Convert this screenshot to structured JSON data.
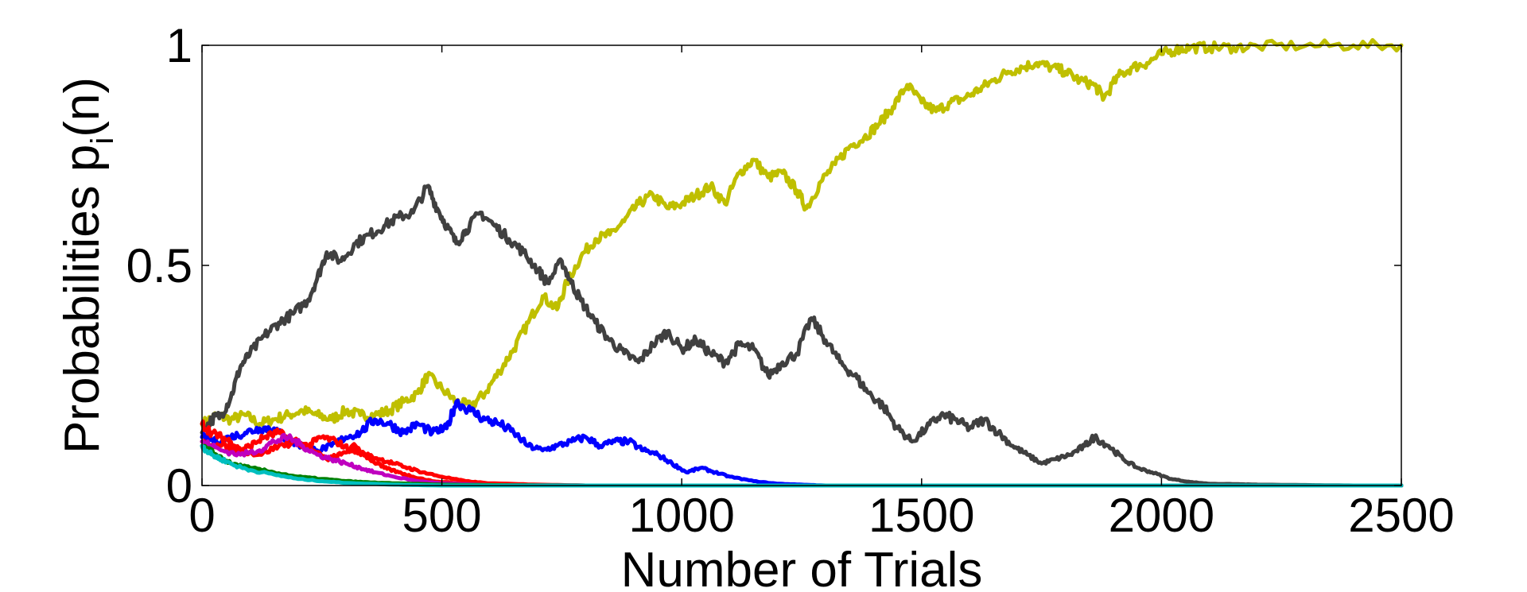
{
  "chart_data": {
    "type": "line",
    "title": "",
    "xlabel": "Number of Trials",
    "ylabel": {
      "main": "Probabilities p",
      "subscript": "i",
      "suffix": "(n)"
    },
    "xlim": [
      0,
      2500
    ],
    "ylim": [
      0,
      1
    ],
    "xticks": [
      0,
      500,
      1000,
      1500,
      2000,
      2500
    ],
    "yticks": [
      0,
      0.5,
      1
    ],
    "xtick_labels": [
      "0",
      "500",
      "1000",
      "1500",
      "2000",
      "2500"
    ],
    "ytick_labels": [
      "0",
      "0.5",
      "1"
    ],
    "grid": false,
    "legend": "none",
    "series": [
      {
        "color": "#bfbf00",
        "points": [
          [
            0,
            0.14
          ],
          [
            30,
            0.16
          ],
          [
            60,
            0.15
          ],
          [
            90,
            0.16
          ],
          [
            120,
            0.14
          ],
          [
            150,
            0.15
          ],
          [
            180,
            0.16
          ],
          [
            210,
            0.17
          ],
          [
            240,
            0.16
          ],
          [
            270,
            0.15
          ],
          [
            300,
            0.17
          ],
          [
            330,
            0.16
          ],
          [
            360,
            0.16
          ],
          [
            390,
            0.17
          ],
          [
            420,
            0.19
          ],
          [
            450,
            0.21
          ],
          [
            470,
            0.25
          ],
          [
            500,
            0.22
          ],
          [
            530,
            0.19
          ],
          [
            560,
            0.18
          ],
          [
            590,
            0.21
          ],
          [
            620,
            0.26
          ],
          [
            650,
            0.31
          ],
          [
            680,
            0.37
          ],
          [
            710,
            0.43
          ],
          [
            740,
            0.4
          ],
          [
            760,
            0.46
          ],
          [
            790,
            0.52
          ],
          [
            820,
            0.56
          ],
          [
            850,
            0.57
          ],
          [
            880,
            0.6
          ],
          [
            910,
            0.64
          ],
          [
            940,
            0.66
          ],
          [
            970,
            0.63
          ],
          [
            1000,
            0.64
          ],
          [
            1030,
            0.66
          ],
          [
            1060,
            0.68
          ],
          [
            1090,
            0.64
          ],
          [
            1120,
            0.71
          ],
          [
            1150,
            0.74
          ],
          [
            1180,
            0.7
          ],
          [
            1210,
            0.71
          ],
          [
            1240,
            0.67
          ],
          [
            1260,
            0.63
          ],
          [
            1290,
            0.69
          ],
          [
            1320,
            0.73
          ],
          [
            1350,
            0.77
          ],
          [
            1380,
            0.79
          ],
          [
            1410,
            0.82
          ],
          [
            1440,
            0.86
          ],
          [
            1470,
            0.91
          ],
          [
            1500,
            0.87
          ],
          [
            1530,
            0.85
          ],
          [
            1560,
            0.87
          ],
          [
            1590,
            0.88
          ],
          [
            1620,
            0.9
          ],
          [
            1650,
            0.92
          ],
          [
            1680,
            0.94
          ],
          [
            1710,
            0.95
          ],
          [
            1740,
            0.96
          ],
          [
            1770,
            0.95
          ],
          [
            1800,
            0.94
          ],
          [
            1830,
            0.92
          ],
          [
            1860,
            0.91
          ],
          [
            1880,
            0.88
          ],
          [
            1910,
            0.93
          ],
          [
            1940,
            0.95
          ],
          [
            1970,
            0.96
          ],
          [
            2000,
            0.98
          ],
          [
            2030,
            0.99
          ],
          [
            2060,
            0.995
          ],
          [
            2100,
            0.995
          ],
          [
            2150,
            0.995
          ],
          [
            2200,
            0.998
          ],
          [
            2300,
            0.999
          ],
          [
            2400,
            1.0
          ],
          [
            2500,
            1.0
          ]
        ]
      },
      {
        "color": "#404040",
        "points": [
          [
            0,
            0.12
          ],
          [
            20,
            0.15
          ],
          [
            40,
            0.16
          ],
          [
            60,
            0.2
          ],
          [
            80,
            0.27
          ],
          [
            100,
            0.3
          ],
          [
            130,
            0.34
          ],
          [
            160,
            0.37
          ],
          [
            190,
            0.39
          ],
          [
            220,
            0.42
          ],
          [
            240,
            0.47
          ],
          [
            260,
            0.53
          ],
          [
            290,
            0.51
          ],
          [
            320,
            0.55
          ],
          [
            350,
            0.57
          ],
          [
            380,
            0.59
          ],
          [
            410,
            0.61
          ],
          [
            440,
            0.62
          ],
          [
            470,
            0.68
          ],
          [
            490,
            0.63
          ],
          [
            510,
            0.59
          ],
          [
            530,
            0.55
          ],
          [
            550,
            0.58
          ],
          [
            580,
            0.62
          ],
          [
            610,
            0.59
          ],
          [
            640,
            0.56
          ],
          [
            670,
            0.53
          ],
          [
            700,
            0.49
          ],
          [
            720,
            0.46
          ],
          [
            750,
            0.51
          ],
          [
            770,
            0.46
          ],
          [
            790,
            0.42
          ],
          [
            820,
            0.37
          ],
          [
            850,
            0.33
          ],
          [
            880,
            0.3
          ],
          [
            910,
            0.28
          ],
          [
            940,
            0.32
          ],
          [
            970,
            0.35
          ],
          [
            1000,
            0.31
          ],
          [
            1030,
            0.33
          ],
          [
            1060,
            0.3
          ],
          [
            1090,
            0.28
          ],
          [
            1120,
            0.32
          ],
          [
            1150,
            0.31
          ],
          [
            1180,
            0.25
          ],
          [
            1210,
            0.28
          ],
          [
            1240,
            0.3
          ],
          [
            1270,
            0.38
          ],
          [
            1300,
            0.33
          ],
          [
            1330,
            0.28
          ],
          [
            1360,
            0.25
          ],
          [
            1390,
            0.21
          ],
          [
            1420,
            0.18
          ],
          [
            1450,
            0.13
          ],
          [
            1480,
            0.1
          ],
          [
            1510,
            0.13
          ],
          [
            1540,
            0.16
          ],
          [
            1570,
            0.15
          ],
          [
            1600,
            0.13
          ],
          [
            1630,
            0.15
          ],
          [
            1660,
            0.12
          ],
          [
            1690,
            0.09
          ],
          [
            1720,
            0.07
          ],
          [
            1750,
            0.05
          ],
          [
            1780,
            0.06
          ],
          [
            1810,
            0.07
          ],
          [
            1840,
            0.09
          ],
          [
            1860,
            0.11
          ],
          [
            1890,
            0.09
          ],
          [
            1920,
            0.06
          ],
          [
            1950,
            0.04
          ],
          [
            1980,
            0.03
          ],
          [
            2020,
            0.015
          ],
          [
            2060,
            0.008
          ],
          [
            2100,
            0.004
          ],
          [
            2160,
            0.003
          ],
          [
            2200,
            0.002
          ],
          [
            2300,
            0.001
          ],
          [
            2400,
            0.0
          ],
          [
            2500,
            0.0
          ]
        ]
      },
      {
        "color": "#0000ff",
        "points": [
          [
            0,
            0.11
          ],
          [
            30,
            0.1
          ],
          [
            60,
            0.11
          ],
          [
            90,
            0.12
          ],
          [
            120,
            0.13
          ],
          [
            150,
            0.13
          ],
          [
            180,
            0.1
          ],
          [
            210,
            0.09
          ],
          [
            240,
            0.08
          ],
          [
            270,
            0.09
          ],
          [
            300,
            0.11
          ],
          [
            330,
            0.12
          ],
          [
            360,
            0.15
          ],
          [
            390,
            0.14
          ],
          [
            420,
            0.12
          ],
          [
            450,
            0.14
          ],
          [
            480,
            0.12
          ],
          [
            510,
            0.13
          ],
          [
            530,
            0.19
          ],
          [
            560,
            0.17
          ],
          [
            590,
            0.15
          ],
          [
            620,
            0.14
          ],
          [
            650,
            0.12
          ],
          [
            680,
            0.09
          ],
          [
            710,
            0.08
          ],
          [
            740,
            0.09
          ],
          [
            770,
            0.1
          ],
          [
            800,
            0.11
          ],
          [
            830,
            0.09
          ],
          [
            860,
            0.1
          ],
          [
            890,
            0.1
          ],
          [
            920,
            0.08
          ],
          [
            950,
            0.07
          ],
          [
            980,
            0.05
          ],
          [
            1010,
            0.03
          ],
          [
            1040,
            0.04
          ],
          [
            1070,
            0.03
          ],
          [
            1100,
            0.02
          ],
          [
            1150,
            0.01
          ],
          [
            1200,
            0.004
          ],
          [
            1250,
            0.002
          ],
          [
            1300,
            0.0
          ],
          [
            1400,
            0.0
          ],
          [
            2500,
            0.0
          ]
        ]
      },
      {
        "color": "#ff0000",
        "points": [
          [
            0,
            0.14
          ],
          [
            20,
            0.12
          ],
          [
            40,
            0.11
          ],
          [
            60,
            0.1
          ],
          [
            80,
            0.08
          ],
          [
            100,
            0.09
          ],
          [
            130,
            0.11
          ],
          [
            160,
            0.12
          ],
          [
            190,
            0.1
          ],
          [
            220,
            0.09
          ],
          [
            250,
            0.11
          ],
          [
            280,
            0.1
          ],
          [
            310,
            0.08
          ],
          [
            340,
            0.07
          ],
          [
            370,
            0.06
          ],
          [
            400,
            0.05
          ],
          [
            430,
            0.04
          ],
          [
            460,
            0.03
          ],
          [
            500,
            0.02
          ],
          [
            550,
            0.01
          ],
          [
            600,
            0.005
          ],
          [
            700,
            0.002
          ],
          [
            800,
            0.0
          ],
          [
            1000,
            0.0
          ],
          [
            1500,
            0.0
          ],
          [
            2000,
            0.0
          ],
          [
            2500,
            0.0
          ]
        ]
      },
      {
        "color": "#ff0000",
        "points": [
          [
            0,
            0.1
          ],
          [
            40,
            0.09
          ],
          [
            80,
            0.08
          ],
          [
            120,
            0.07
          ],
          [
            160,
            0.09
          ],
          [
            200,
            0.1
          ],
          [
            230,
            0.08
          ],
          [
            260,
            0.06
          ],
          [
            290,
            0.07
          ],
          [
            320,
            0.09
          ],
          [
            350,
            0.06
          ],
          [
            380,
            0.04
          ],
          [
            410,
            0.03
          ],
          [
            440,
            0.02
          ],
          [
            480,
            0.01
          ],
          [
            550,
            0.004
          ],
          [
            650,
            0.001
          ],
          [
            800,
            0.0
          ],
          [
            2500,
            0.0
          ]
        ]
      },
      {
        "color": "#bf00bf",
        "points": [
          [
            0,
            0.1
          ],
          [
            40,
            0.08
          ],
          [
            80,
            0.07
          ],
          [
            120,
            0.08
          ],
          [
            150,
            0.1
          ],
          [
            180,
            0.11
          ],
          [
            210,
            0.09
          ],
          [
            240,
            0.07
          ],
          [
            270,
            0.06
          ],
          [
            300,
            0.05
          ],
          [
            330,
            0.04
          ],
          [
            360,
            0.03
          ],
          [
            400,
            0.02
          ],
          [
            450,
            0.01
          ],
          [
            500,
            0.005
          ],
          [
            600,
            0.001
          ],
          [
            800,
            0.0
          ],
          [
            2500,
            0.0
          ]
        ]
      },
      {
        "color": "#008000",
        "points": [
          [
            0,
            0.09
          ],
          [
            30,
            0.07
          ],
          [
            60,
            0.05
          ],
          [
            100,
            0.04
          ],
          [
            150,
            0.03
          ],
          [
            200,
            0.02
          ],
          [
            250,
            0.015
          ],
          [
            300,
            0.01
          ],
          [
            350,
            0.007
          ],
          [
            400,
            0.005
          ],
          [
            500,
            0.002
          ],
          [
            600,
            0.001
          ],
          [
            800,
            0.0
          ],
          [
            2500,
            0.0
          ]
        ]
      },
      {
        "color": "#00bfbf",
        "points": [
          [
            0,
            0.09
          ],
          [
            20,
            0.07
          ],
          [
            40,
            0.06
          ],
          [
            70,
            0.045
          ],
          [
            100,
            0.035
          ],
          [
            150,
            0.025
          ],
          [
            200,
            0.015
          ],
          [
            250,
            0.01
          ],
          [
            300,
            0.006
          ],
          [
            400,
            0.002
          ],
          [
            500,
            0.0
          ],
          [
            2500,
            0.0
          ]
        ]
      }
    ]
  }
}
